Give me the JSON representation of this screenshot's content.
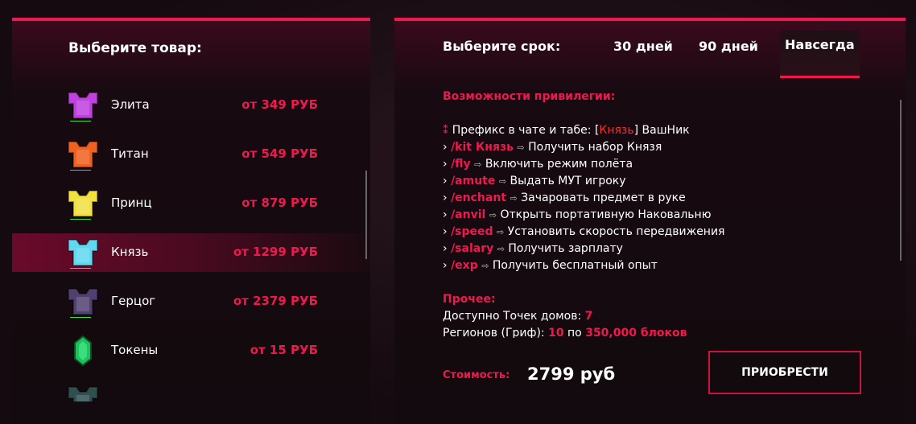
{
  "colors": {
    "accent": "#ee1a4f",
    "highlight_row": "#6a0a2a",
    "prefix": "#ff2a2a"
  },
  "left": {
    "title": "Выберите товар:",
    "items": [
      {
        "name": "",
        "price": "",
        "icon": "chestplate-icon",
        "color": "#c07020",
        "partial": true
      },
      {
        "name": "Элита",
        "price": "от 349 РУБ",
        "icon": "chestplate-icon",
        "color": "#c040e0"
      },
      {
        "name": "Титан",
        "price": "от 549 РУБ",
        "icon": "chestplate-icon",
        "color": "#f06020"
      },
      {
        "name": "Принц",
        "price": "от 879 РУБ",
        "icon": "chestplate-icon",
        "color": "#f0e040"
      },
      {
        "name": "Князь",
        "price": "от 1299 РУБ",
        "icon": "chestplate-icon",
        "color": "#60d8f0",
        "selected": true
      },
      {
        "name": "Герцог",
        "price": "от 2379 РУБ",
        "icon": "chestplate-icon",
        "color": "#504070"
      },
      {
        "name": "Токены",
        "price": "от 15 РУБ",
        "icon": "emerald-icon",
        "color": "#20c060"
      },
      {
        "name": "",
        "price": "",
        "icon": "case-icon",
        "color": "#305050",
        "partial": true
      }
    ]
  },
  "right": {
    "period_label": "Выберите срок:",
    "periods": [
      {
        "label": "30 дней"
      },
      {
        "label": "90 дней"
      },
      {
        "label": "Навсегда",
        "active": true
      }
    ],
    "features_title": "Возможности привилегии:",
    "prefix": {
      "label": "Префикс в чате и табе: [",
      "rank": "Князь",
      "suffix": "] ВашНик"
    },
    "commands": [
      {
        "cmd": "/kit Князь",
        "desc": "Получить набор Князя"
      },
      {
        "cmd": "/fly",
        "desc": "Включить режим полёта"
      },
      {
        "cmd": "/amute",
        "desc": "Выдать МУТ игроку"
      },
      {
        "cmd": "/enchant",
        "desc": "Зачаровать предмет в руке"
      },
      {
        "cmd": "/anvil",
        "desc": "Открыть портативную Наковальню"
      },
      {
        "cmd": "/speed",
        "desc": "Установить скорость передвижения"
      },
      {
        "cmd": "/salary",
        "desc": "Получить зарплату"
      },
      {
        "cmd": "/exp",
        "desc": "Получить бесплатный опыт"
      }
    ],
    "other_title": "Прочее:",
    "homes": {
      "label": "Доступно Точек домов: ",
      "value": "7"
    },
    "regions": {
      "label": "Регионов (Гриф): ",
      "count": "10",
      "mid": " по ",
      "size": "350,000 блоков"
    },
    "cost_label": "Стоимость:",
    "cost_value": "2799 руб",
    "buy_label": "ПРИОБРЕСТИ"
  }
}
